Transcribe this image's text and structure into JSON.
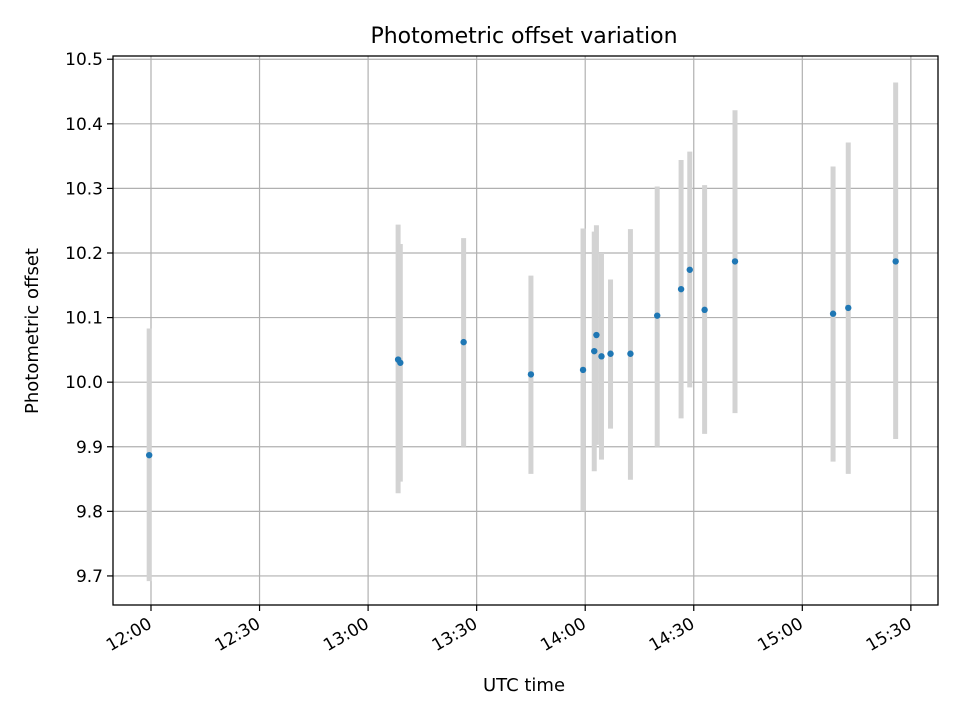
{
  "chart_data": {
    "type": "scatter",
    "title": "Photometric offset variation",
    "xlabel": "UTC time",
    "ylabel": "Photometric offset",
    "x_unit": "minutes after 12:00 UTC",
    "xlim": [
      -10.5,
      217.5
    ],
    "ylim": [
      9.655,
      10.505
    ],
    "grid": true,
    "colors": {
      "point": "#1f77b4",
      "errorbar": "#d3d3d3",
      "grid": "#b0b0b0",
      "axes": "#000000"
    },
    "x_ticks": [
      {
        "value": 0,
        "label": "12:00"
      },
      {
        "value": 30,
        "label": "12:30"
      },
      {
        "value": 60,
        "label": "13:00"
      },
      {
        "value": 90,
        "label": "13:30"
      },
      {
        "value": 120,
        "label": "14:00"
      },
      {
        "value": 150,
        "label": "14:30"
      },
      {
        "value": 180,
        "label": "15:00"
      },
      {
        "value": 210,
        "label": "15:30"
      }
    ],
    "y_ticks": [
      {
        "value": 9.7,
        "label": "9.7"
      },
      {
        "value": 9.8,
        "label": "9.8"
      },
      {
        "value": 9.9,
        "label": "9.9"
      },
      {
        "value": 10.0,
        "label": "10.0"
      },
      {
        "value": 10.1,
        "label": "10.1"
      },
      {
        "value": 10.2,
        "label": "10.2"
      },
      {
        "value": 10.3,
        "label": "10.3"
      },
      {
        "value": 10.4,
        "label": "10.4"
      },
      {
        "value": 10.5,
        "label": "10.5"
      }
    ],
    "points": [
      {
        "x": -0.5,
        "y": 9.887,
        "ylo": 9.692,
        "yhi": 10.083
      },
      {
        "x": 68.3,
        "y": 10.035,
        "ylo": 9.828,
        "yhi": 10.244
      },
      {
        "x": 68.9,
        "y": 10.03,
        "ylo": 9.846,
        "yhi": 10.214
      },
      {
        "x": 86.4,
        "y": 10.062,
        "ylo": 9.9,
        "yhi": 10.223
      },
      {
        "x": 105.0,
        "y": 10.012,
        "ylo": 9.858,
        "yhi": 10.165
      },
      {
        "x": 119.4,
        "y": 10.019,
        "ylo": 9.8,
        "yhi": 10.238
      },
      {
        "x": 122.5,
        "y": 10.048,
        "ylo": 9.862,
        "yhi": 10.233
      },
      {
        "x": 123.1,
        "y": 10.073,
        "ylo": 9.903,
        "yhi": 10.243
      },
      {
        "x": 124.5,
        "y": 10.04,
        "ylo": 9.88,
        "yhi": 10.2
      },
      {
        "x": 127.0,
        "y": 10.044,
        "ylo": 9.928,
        "yhi": 10.159
      },
      {
        "x": 132.5,
        "y": 10.044,
        "ylo": 9.849,
        "yhi": 10.237
      },
      {
        "x": 139.9,
        "y": 10.103,
        "ylo": 9.9,
        "yhi": 10.303
      },
      {
        "x": 146.5,
        "y": 10.144,
        "ylo": 9.944,
        "yhi": 10.344
      },
      {
        "x": 148.9,
        "y": 10.174,
        "ylo": 9.992,
        "yhi": 10.357
      },
      {
        "x": 153.0,
        "y": 10.112,
        "ylo": 9.92,
        "yhi": 10.305
      },
      {
        "x": 161.4,
        "y": 10.187,
        "ylo": 9.952,
        "yhi": 10.421
      },
      {
        "x": 188.5,
        "y": 10.106,
        "ylo": 9.877,
        "yhi": 10.334
      },
      {
        "x": 192.7,
        "y": 10.115,
        "ylo": 9.858,
        "yhi": 10.371
      },
      {
        "x": 205.8,
        "y": 10.187,
        "ylo": 9.912,
        "yhi": 10.464
      }
    ]
  }
}
